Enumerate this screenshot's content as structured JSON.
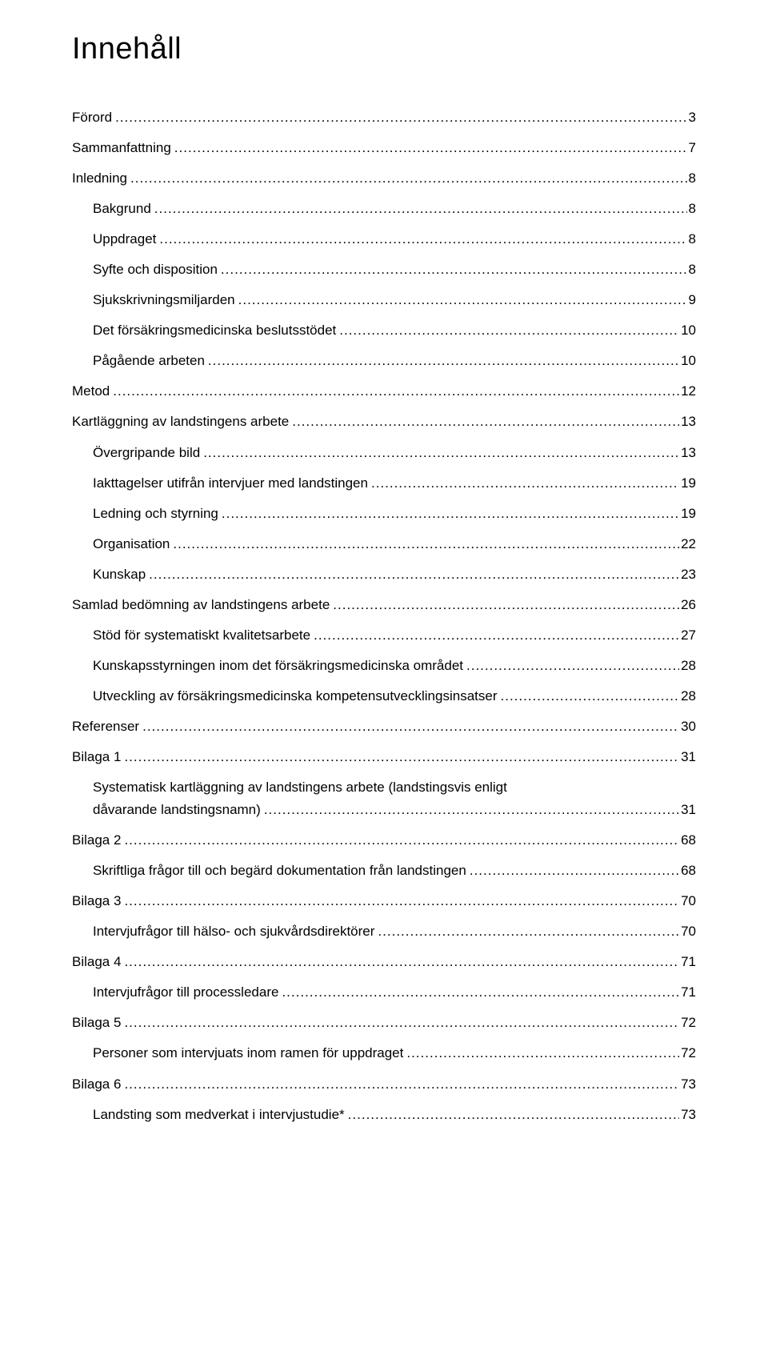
{
  "title": "Innehåll",
  "entries": [
    {
      "label": "Förord",
      "page": "3",
      "indent": 0
    },
    {
      "label": "Sammanfattning",
      "page": "7",
      "indent": 0
    },
    {
      "label": "Inledning",
      "page": "8",
      "indent": 0
    },
    {
      "label": "Bakgrund",
      "page": "8",
      "indent": 1
    },
    {
      "label": "Uppdraget",
      "page": "8",
      "indent": 1
    },
    {
      "label": "Syfte och disposition",
      "page": "8",
      "indent": 1
    },
    {
      "label": "Sjukskrivningsmiljarden",
      "page": "9",
      "indent": 1
    },
    {
      "label": "Det försäkringsmedicinska beslutsstödet",
      "page": "10",
      "indent": 1
    },
    {
      "label": "Pågående arbeten",
      "page": "10",
      "indent": 1
    },
    {
      "label": "Metod",
      "page": "12",
      "indent": 0
    },
    {
      "label": "Kartläggning av landstingens arbete",
      "page": " 13",
      "indent": 0
    },
    {
      "label": "Övergripande bild",
      "page": "13",
      "indent": 1
    },
    {
      "label": "Iakttagelser utifrån intervjuer med landstingen",
      "page": " 19",
      "indent": 1
    },
    {
      "label": "Ledning och styrning",
      "page": "19",
      "indent": 1
    },
    {
      "label": "Organisation",
      "page": "22",
      "indent": 1
    },
    {
      "label": "Kunskap",
      "page": "23",
      "indent": 1
    },
    {
      "label": "Samlad bedömning av landstingens arbete",
      "page": " 26",
      "indent": 0
    },
    {
      "label": "Stöd för systematiskt kvalitetsarbete",
      "page": "27",
      "indent": 1
    },
    {
      "label": "Kunskapsstyrningen inom det försäkringsmedicinska området",
      "page": "28",
      "indent": 1
    },
    {
      "label": "Utveckling av försäkringsmedicinska kompetensutvecklingsinsatser",
      "page": "28",
      "indent": 1
    },
    {
      "label": "Referenser",
      "page": " 30",
      "indent": 0
    },
    {
      "label": "Bilaga 1",
      "page": " 31",
      "indent": 0
    },
    {
      "label_line1": "Systematisk kartläggning av landstingens arbete (landstingsvis enligt",
      "label_line2": "dåvarande landstingsnamn)",
      "page": "31",
      "indent": 1,
      "multiline": true
    },
    {
      "label": "Bilaga 2",
      "page": " 68",
      "indent": 0
    },
    {
      "label": "Skriftliga frågor till och begärd dokumentation från landstingen",
      "page": "68",
      "indent": 1
    },
    {
      "label": "Bilaga 3",
      "page": " 70",
      "indent": 0
    },
    {
      "label": "Intervjufrågor till hälso- och sjukvårdsdirektörer",
      "page": "70",
      "indent": 1
    },
    {
      "label": "Bilaga 4",
      "page": " 71",
      "indent": 0
    },
    {
      "label": "Intervjufrågor till processledare",
      "page": "71",
      "indent": 1
    },
    {
      "label": "Bilaga 5",
      "page": " 72",
      "indent": 0
    },
    {
      "label": "Personer som intervjuats inom ramen för uppdraget",
      "page": "72",
      "indent": 1
    },
    {
      "label": "Bilaga 6",
      "page": " 73",
      "indent": 0
    },
    {
      "label": "Landsting som medverkat i intervjustudie*",
      "page": "73",
      "indent": 1
    }
  ]
}
